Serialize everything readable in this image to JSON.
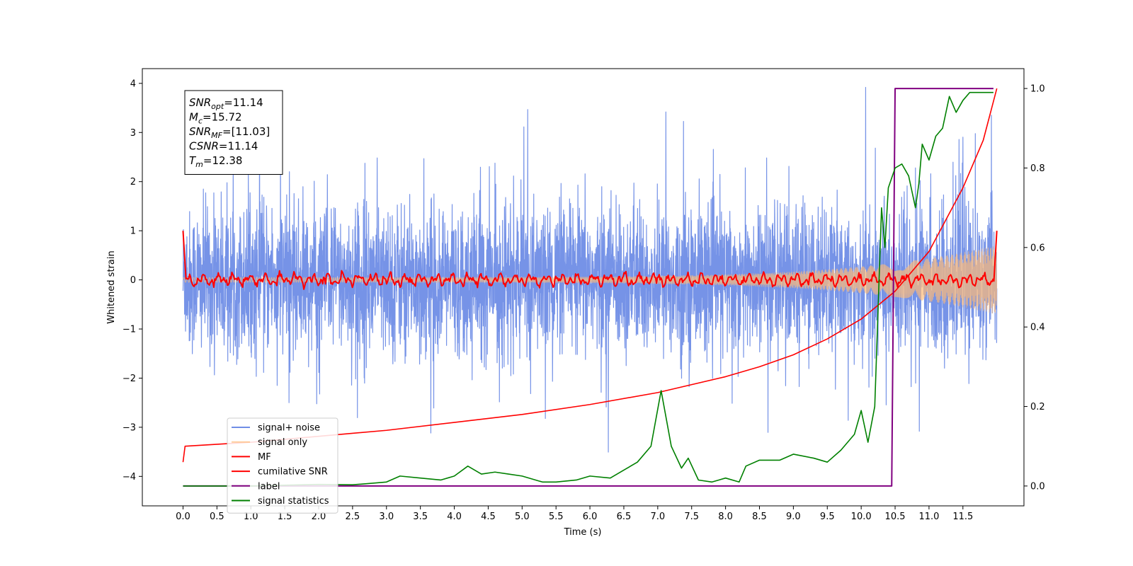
{
  "chart_data": {
    "type": "line",
    "xlabel": "Time (s)",
    "ylabel": "Whitened strain",
    "xlim": [
      -0.6,
      12.4
    ],
    "ylim": [
      -4.6,
      4.3
    ],
    "y2lim": [
      -0.05,
      1.05
    ],
    "x_ticks": [
      0.0,
      0.5,
      1.0,
      1.5,
      2.0,
      2.5,
      3.0,
      3.5,
      4.0,
      4.5,
      5.0,
      5.5,
      6.0,
      6.5,
      7.0,
      7.5,
      8.0,
      8.5,
      9.0,
      9.5,
      10.0,
      10.5,
      11.0,
      11.5
    ],
    "x_tick_labels": [
      "0.0",
      "0.5",
      "1.0",
      "1.5",
      "2.0",
      "2.5",
      "3.0",
      "3.5",
      "4.0",
      "4.5",
      "5.0",
      "5.5",
      "6.0",
      "6.5",
      "7.0",
      "7.5",
      "8.0",
      "8.5",
      "9.0",
      "9.5",
      "10.0",
      "10.5",
      "11.0",
      "11.5"
    ],
    "y_ticks": [
      -4,
      -3,
      -2,
      -1,
      0,
      1,
      2,
      3,
      4
    ],
    "y_tick_labels": [
      "−4",
      "−3",
      "−2",
      "−1",
      "0",
      "1",
      "2",
      "3",
      "4"
    ],
    "y2_ticks": [
      0.0,
      0.2,
      0.4,
      0.6,
      0.8,
      1.0
    ],
    "y2_tick_labels": [
      "0.0",
      "0.2",
      "0.4",
      "0.6",
      "0.8",
      "1.0"
    ],
    "duration": 12.0,
    "grid": false,
    "legend_position": "lower-left",
    "annotation": {
      "lines": [
        {
          "base": "SNR",
          "sub": "opt",
          "value": "=11.14"
        },
        {
          "base": "M",
          "sub": "c",
          "value": "=15.72"
        },
        {
          "base": "SNR",
          "sub": "MF",
          "value": "=[11.03]"
        },
        {
          "base": "CSNR",
          "sub": "",
          "value": "=11.14"
        },
        {
          "base": "T",
          "sub": "m",
          "value": "=12.38"
        }
      ]
    },
    "series": [
      {
        "name": "signal+ noise",
        "color": "#6f8de6",
        "axis": "left",
        "style": "noise",
        "amplitude_std": 1.0
      },
      {
        "name": "signal only",
        "color": "#ffbb78",
        "axis": "left",
        "style": "chirp",
        "amplitude_start": 0.05,
        "amplitude_end": 0.7
      },
      {
        "name": "MF",
        "color": "#ff0000",
        "axis": "left",
        "style": "mf",
        "x": [
          0.0,
          0.03,
          12.0
        ],
        "y": [
          1.0,
          0.0,
          1.0
        ]
      },
      {
        "name": "cumilative SNR",
        "color": "#ff0000",
        "axis": "right",
        "style": "line",
        "x": [
          0.0,
          0.03,
          1.0,
          2.0,
          3.0,
          4.0,
          5.0,
          6.0,
          7.0,
          8.0,
          8.5,
          9.0,
          9.5,
          10.0,
          10.5,
          11.0,
          11.5,
          11.8,
          12.0
        ],
        "y": [
          0.06,
          0.1,
          0.11,
          0.125,
          0.14,
          0.16,
          0.18,
          0.205,
          0.235,
          0.275,
          0.3,
          0.33,
          0.37,
          0.42,
          0.49,
          0.59,
          0.75,
          0.87,
          1.0
        ]
      },
      {
        "name": "label",
        "color": "#800080",
        "axis": "right",
        "style": "line",
        "x": [
          0.0,
          10.45,
          10.5,
          11.95
        ],
        "y": [
          0.0,
          0.0,
          1.0,
          1.0
        ]
      },
      {
        "name": "signal statistics",
        "color": "#008000",
        "axis": "right",
        "style": "line",
        "x": [
          0.0,
          0.5,
          1.0,
          1.5,
          2.0,
          2.5,
          2.8,
          3.0,
          3.2,
          3.5,
          3.8,
          4.0,
          4.2,
          4.4,
          4.6,
          4.8,
          5.0,
          5.3,
          5.5,
          5.8,
          6.0,
          6.3,
          6.5,
          6.7,
          6.9,
          7.05,
          7.2,
          7.35,
          7.45,
          7.6,
          7.8,
          8.0,
          8.2,
          8.3,
          8.5,
          8.8,
          9.0,
          9.3,
          9.5,
          9.7,
          9.9,
          10.0,
          10.1,
          10.2,
          10.3,
          10.35,
          10.4,
          10.5,
          10.6,
          10.7,
          10.8,
          10.85,
          10.9,
          11.0,
          11.1,
          11.2,
          11.3,
          11.4,
          11.5,
          11.6,
          11.8,
          11.95
        ],
        "y": [
          0.0,
          0.0,
          0.0,
          0.002,
          0.004,
          0.003,
          0.007,
          0.01,
          0.025,
          0.02,
          0.015,
          0.025,
          0.05,
          0.03,
          0.035,
          0.03,
          0.025,
          0.01,
          0.01,
          0.015,
          0.025,
          0.02,
          0.04,
          0.06,
          0.1,
          0.24,
          0.1,
          0.045,
          0.07,
          0.015,
          0.01,
          0.02,
          0.01,
          0.05,
          0.065,
          0.065,
          0.08,
          0.07,
          0.06,
          0.09,
          0.13,
          0.19,
          0.11,
          0.2,
          0.7,
          0.6,
          0.75,
          0.8,
          0.81,
          0.78,
          0.7,
          0.76,
          0.86,
          0.82,
          0.88,
          0.9,
          0.98,
          0.94,
          0.97,
          0.99,
          0.99,
          0.99
        ]
      }
    ]
  }
}
